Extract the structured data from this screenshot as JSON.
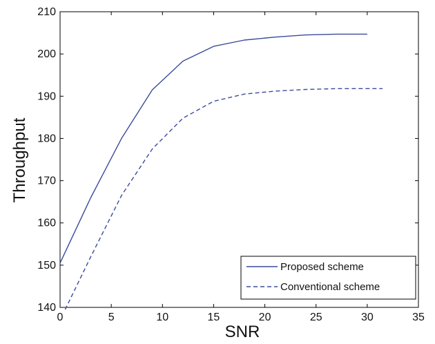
{
  "chart_data": {
    "type": "line",
    "title": "",
    "xlabel": "SNR",
    "ylabel": "Throughput",
    "xlim": [
      0,
      35
    ],
    "ylim": [
      140,
      210
    ],
    "x_ticks": [
      0,
      5,
      10,
      15,
      20,
      25,
      30,
      35
    ],
    "y_ticks": [
      140,
      150,
      160,
      170,
      180,
      190,
      200,
      210
    ],
    "grid": false,
    "legend_position": "bottom-right",
    "series": [
      {
        "name": "Proposed scheme",
        "style": "solid",
        "color": "#3a4a9a",
        "x": [
          0,
          3,
          6,
          9,
          12,
          15,
          18,
          21,
          24,
          27,
          30
        ],
        "y": [
          150.5,
          166,
          180,
          191.5,
          198.3,
          201.8,
          203.3,
          204.0,
          204.5,
          204.7,
          204.7
        ]
      },
      {
        "name": "Conventional scheme",
        "style": "dashed",
        "color": "#3a4a9a",
        "x": [
          0.5,
          3,
          6,
          9,
          12,
          15,
          18,
          21,
          24,
          27,
          31.5
        ],
        "y": [
          139.5,
          152,
          166.5,
          177.5,
          184.8,
          188.8,
          190.5,
          191.2,
          191.6,
          191.8,
          191.8
        ]
      }
    ]
  }
}
